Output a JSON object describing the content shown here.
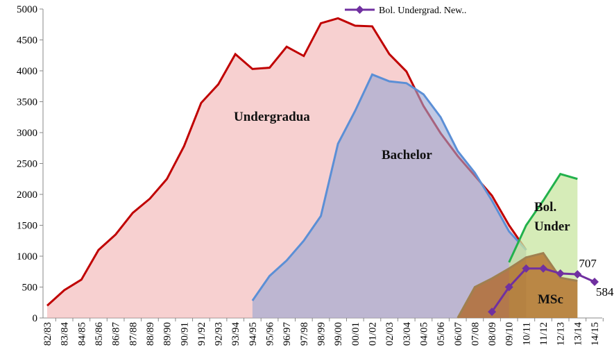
{
  "chart_data": {
    "type": "area",
    "categories": [
      "82/83",
      "83/84",
      "84/85",
      "85/86",
      "86/87",
      "87/88",
      "88/89",
      "89/90",
      "90/91",
      "91/92",
      "92/93",
      "93/94",
      "94/95",
      "95/96",
      "96/97",
      "97/98",
      "98/99",
      "99/00",
      "00/01",
      "01/02",
      "02/03",
      "03/04",
      "04/05",
      "05/06",
      "06/07",
      "07/08",
      "08/09",
      "09/10",
      "10/11",
      "11/12",
      "12/13",
      "13/14",
      "14/15"
    ],
    "ylim": [
      0,
      5000
    ],
    "yticks": [
      0,
      500,
      1000,
      1500,
      2000,
      2500,
      3000,
      3500,
      4000,
      4500,
      5000
    ],
    "areas": [
      {
        "label": "Undergradua",
        "color": "rgba(240,170,170,0.55)",
        "stroke": "#c00000",
        "values": [
          200,
          450,
          620,
          1100,
          1350,
          1700,
          1930,
          2250,
          2780,
          3480,
          3780,
          4270,
          4030,
          4050,
          4390,
          4240,
          4770,
          4850,
          4730,
          4720,
          4270,
          3990,
          3430,
          2990,
          2620,
          2300,
          1980,
          1500,
          1100,
          null,
          null,
          null,
          null
        ]
      },
      {
        "label": "Bachelor",
        "color": "rgba(150,165,210,0.6)",
        "stroke": "#5b8fd6",
        "values": [
          null,
          null,
          null,
          null,
          null,
          null,
          null,
          null,
          null,
          null,
          null,
          null,
          280,
          680,
          930,
          1250,
          1650,
          2820,
          3350,
          3940,
          3830,
          3800,
          3620,
          3250,
          2700,
          2350,
          1900,
          1400,
          1100,
          null,
          null,
          null,
          null
        ]
      },
      {
        "label": "Bol. Under",
        "color": "rgba(200,230,160,0.75)",
        "stroke": "#22b14c",
        "values": [
          null,
          null,
          null,
          null,
          null,
          null,
          null,
          null,
          null,
          null,
          null,
          null,
          null,
          null,
          null,
          null,
          null,
          null,
          null,
          null,
          null,
          null,
          null,
          null,
          null,
          null,
          null,
          900,
          1500,
          1900,
          2330,
          2250,
          null
        ]
      },
      {
        "label": "MSc",
        "color": "rgba(175,95,25,0.72)",
        "stroke": "#a08050",
        "values": [
          null,
          null,
          null,
          null,
          null,
          null,
          null,
          null,
          null,
          null,
          null,
          null,
          null,
          null,
          null,
          null,
          null,
          null,
          null,
          null,
          null,
          null,
          null,
          null,
          0,
          500,
          640,
          800,
          980,
          1050,
          650,
          600,
          null
        ]
      }
    ],
    "series": [
      {
        "name": "Bol. Undergrad. New..",
        "color": "#7030a0",
        "values": [
          null,
          null,
          null,
          null,
          null,
          null,
          null,
          null,
          null,
          null,
          null,
          null,
          null,
          null,
          null,
          null,
          null,
          null,
          null,
          null,
          null,
          null,
          null,
          null,
          null,
          null,
          100,
          500,
          800,
          800,
          720,
          707,
          584
        ],
        "value_labels": [
          null,
          null,
          null,
          null,
          null,
          null,
          null,
          null,
          null,
          null,
          null,
          null,
          null,
          null,
          null,
          null,
          null,
          null,
          null,
          null,
          null,
          null,
          null,
          null,
          null,
          null,
          null,
          null,
          null,
          null,
          null,
          "707",
          "584"
        ]
      }
    ]
  }
}
